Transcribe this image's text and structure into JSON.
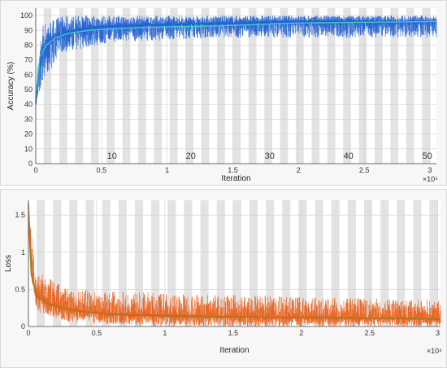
{
  "chart_data": [
    {
      "type": "line",
      "title": "",
      "xlabel": "Iteration",
      "ylabel": "Accuracy (%)",
      "x_scale_label": "×10⁴",
      "xlim": [
        0,
        30500
      ],
      "ylim": [
        0,
        105
      ],
      "x_ticks": [
        0,
        5000,
        10000,
        15000,
        20000,
        25000,
        30000
      ],
      "x_tick_labels": [
        "0",
        "0.5",
        "1",
        "1.5",
        "2",
        "2.5",
        "3"
      ],
      "y_ticks": [
        0,
        10,
        20,
        30,
        40,
        50,
        60,
        70,
        80,
        90,
        100
      ],
      "y_tick_labels": [
        "0",
        "10",
        "20",
        "30",
        "40",
        "50",
        "60",
        "70",
        "80",
        "90",
        "100"
      ],
      "grid": true,
      "epoch_shading": true,
      "epoch_labels": [
        {
          "iteration": 5800,
          "label": "10"
        },
        {
          "iteration": 11800,
          "label": "20"
        },
        {
          "iteration": 17800,
          "label": "30"
        },
        {
          "iteration": 23800,
          "label": "40"
        },
        {
          "iteration": 29800,
          "label": "50"
        }
      ],
      "series": [
        {
          "role": "training accuracy",
          "color": "#1f5fd1",
          "x": [
            0,
            200,
            500,
            1000,
            1500,
            2000,
            3000,
            4000,
            6000,
            10000,
            15000,
            20000,
            25000,
            30500
          ],
          "y": [
            40,
            65,
            75,
            82,
            85,
            87,
            90,
            92,
            93,
            94,
            95,
            96,
            96,
            96
          ],
          "noise_band": [
            [
              0,
              38,
              45
            ],
            [
              500,
              55,
              95
            ],
            [
              2000,
              75,
              100
            ],
            [
              6000,
              82,
              100
            ],
            [
              15000,
              85,
              100
            ],
            [
              30500,
              85,
              100
            ]
          ]
        },
        {
          "role": "smoothed training accuracy",
          "color": "#3fd6c8",
          "x": [
            0,
            300,
            800,
            1500,
            2500,
            4000,
            8000,
            14000,
            20000,
            30500
          ],
          "y": [
            45,
            72,
            80,
            85,
            88,
            90,
            92,
            93,
            95,
            96
          ]
        }
      ]
    },
    {
      "type": "line",
      "title": "",
      "xlabel": "Iteration",
      "ylabel": "Loss",
      "x_scale_label": "×10⁴",
      "xlim": [
        0,
        30200
      ],
      "ylim": [
        0,
        1.7
      ],
      "x_ticks": [
        0,
        5000,
        10000,
        15000,
        20000,
        25000,
        30000
      ],
      "x_tick_labels": [
        "0",
        "0.5",
        "1",
        "1.5",
        "2",
        "2.5",
        "3"
      ],
      "y_ticks": [
        0,
        0.5,
        1,
        1.5
      ],
      "y_tick_labels": [
        "0",
        "0.5",
        "1",
        "1.5"
      ],
      "grid": true,
      "epoch_shading": true,
      "series": [
        {
          "role": "training loss",
          "color": "#e8601c",
          "x": [
            0,
            100,
            300,
            700,
            1500,
            2500,
            4000,
            6000,
            10000,
            15000,
            20000,
            25000,
            30200
          ],
          "y": [
            1.65,
            1.2,
            0.6,
            0.4,
            0.3,
            0.25,
            0.2,
            0.17,
            0.15,
            0.13,
            0.12,
            0.11,
            0.1
          ],
          "noise_band": [
            [
              0,
              1.4,
              1.68
            ],
            [
              500,
              0.2,
              0.75
            ],
            [
              3000,
              0.05,
              0.5
            ],
            [
              10000,
              0.0,
              0.45
            ],
            [
              30200,
              0.0,
              0.35
            ]
          ]
        },
        {
          "role": "smoothed training loss",
          "color": "#9a7c1a",
          "x": [
            0,
            200,
            600,
            1500,
            3000,
            6000,
            10000,
            20000,
            30200
          ],
          "y": [
            1.5,
            0.7,
            0.4,
            0.3,
            0.22,
            0.16,
            0.14,
            0.12,
            0.1
          ]
        }
      ]
    }
  ]
}
